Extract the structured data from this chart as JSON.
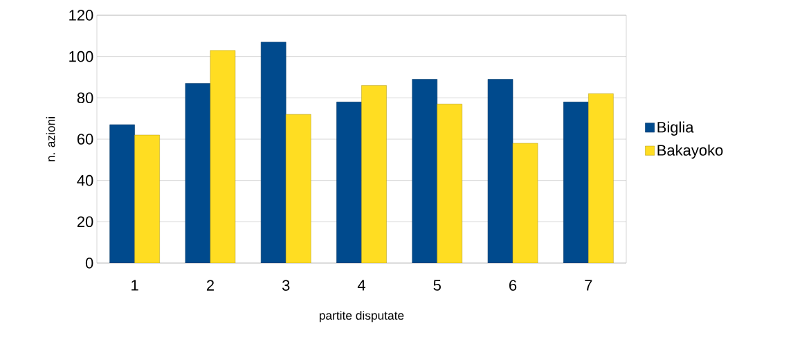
{
  "chart_data": {
    "type": "bar",
    "xlabel": "partite disputate",
    "ylabel": "n. azioni",
    "categories": [
      "1",
      "2",
      "3",
      "4",
      "5",
      "6",
      "7"
    ],
    "series": [
      {
        "name": "Biglia",
        "color": "#004a8d",
        "values": [
          67,
          87,
          107,
          78,
          89,
          89,
          78
        ]
      },
      {
        "name": "Bakayoko",
        "color": "#ffdd22",
        "values": [
          62,
          103,
          72,
          86,
          77,
          58,
          82
        ]
      }
    ],
    "ylim": [
      0,
      120
    ],
    "yticks": [
      0,
      20,
      40,
      60,
      80,
      100,
      120
    ],
    "grid": "y",
    "legend": "right"
  }
}
